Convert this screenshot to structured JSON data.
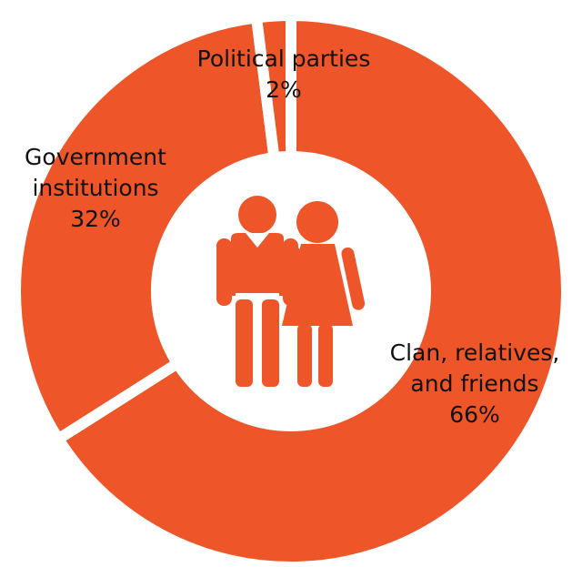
{
  "chart_data": {
    "type": "pie",
    "variant": "donut",
    "title": "",
    "categories": [
      "Clan, relatives, and friends",
      "Government institutions",
      "Political parties"
    ],
    "values": [
      66,
      32,
      2
    ],
    "value_labels": [
      "66%",
      "32%",
      "2%"
    ],
    "label_lines": [
      [
        "Clan, relatives,",
        "and friends"
      ],
      [
        "Government",
        "institutions"
      ],
      [
        "Political parties"
      ]
    ],
    "slice_color": "#EE5528",
    "separator_color": "#ffffff",
    "center_icon": "couple-icon",
    "legend": "none"
  }
}
